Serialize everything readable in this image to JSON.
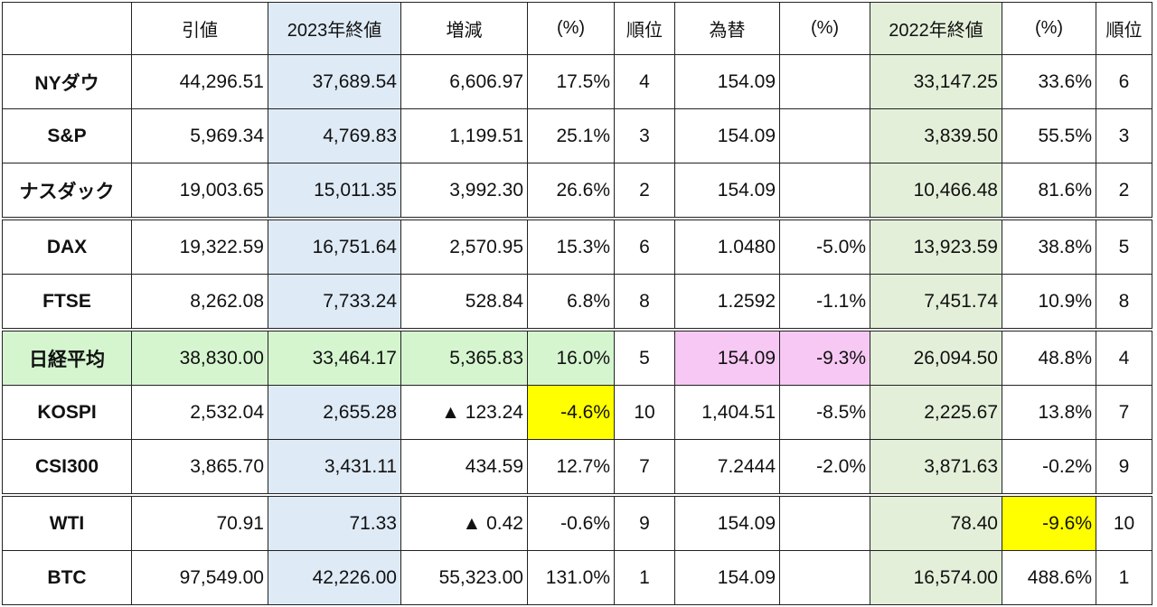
{
  "table": {
    "header": [
      null,
      "引値",
      "2023年終値",
      "増減",
      "(%)",
      "順位",
      "為替",
      "(%)",
      "2022年終値",
      "(%)",
      "順位"
    ],
    "rows": [
      [
        "NYダウ",
        "44,296.51",
        "37,689.54",
        "6,606.97",
        "17.5%",
        "4",
        "154.09",
        null,
        "33,147.25",
        "33.6%",
        "6"
      ],
      [
        "S&P",
        "5,969.34",
        "4,769.83",
        "1,199.51",
        "25.1%",
        "3",
        "154.09",
        null,
        "3,839.50",
        "55.5%",
        "3"
      ],
      [
        "ナスダック",
        "19,003.65",
        "15,011.35",
        "3,992.30",
        "26.6%",
        "2",
        "154.09",
        null,
        "10,466.48",
        "81.6%",
        "2"
      ],
      [
        "DAX",
        "19,322.59",
        "16,751.64",
        "2,570.95",
        "15.3%",
        "6",
        "1.0480",
        "-5.0%",
        "13,923.59",
        "38.8%",
        "5"
      ],
      [
        "FTSE",
        "8,262.08",
        "7,733.24",
        "528.84",
        "6.8%",
        "8",
        "1.2592",
        "-1.1%",
        "7,451.74",
        "10.9%",
        "8"
      ],
      [
        "日経平均",
        "38,830.00",
        "33,464.17",
        "5,365.83",
        "16.0%",
        "5",
        "154.09",
        "-9.3%",
        "26,094.50",
        "48.8%",
        "4"
      ],
      [
        "KOSPI",
        "2,532.04",
        "2,655.28",
        "▲ 123.24",
        "-4.6%",
        "10",
        "1,404.51",
        "-8.5%",
        "2,225.67",
        "13.8%",
        "7"
      ],
      [
        "CSI300",
        "3,865.70",
        "3,431.11",
        "434.59",
        "12.7%",
        "7",
        "7.2444",
        "-2.0%",
        "3,871.63",
        "-0.2%",
        "9"
      ],
      [
        "WTI",
        "70.91",
        "71.33",
        "▲ 0.42",
        "-0.6%",
        "9",
        "154.09",
        null,
        "78.40",
        "-9.6%",
        "10"
      ],
      [
        "BTC",
        "97,549.00",
        "42,226.00",
        "55,323.00",
        "131.0%",
        "1",
        "154.09",
        null,
        "16,574.00",
        "488.6%",
        "1"
      ]
    ]
  }
}
